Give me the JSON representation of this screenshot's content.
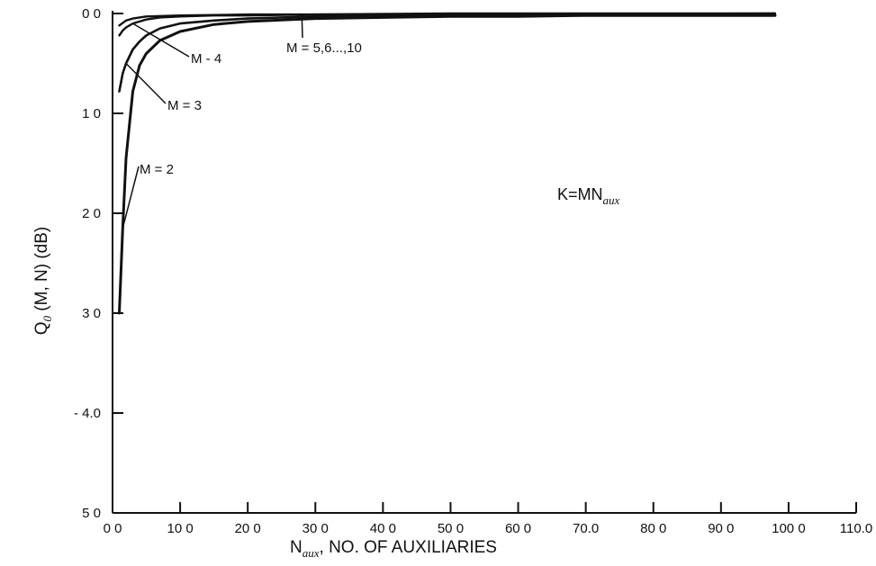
{
  "chart_data": {
    "type": "line",
    "title": "",
    "xlabel": {
      "main": "N",
      "sub": "aux",
      "rest": ",  NO. OF AUXILIARIES"
    },
    "ylabel": {
      "main": "Q",
      "sub": "0",
      "rest": " (M, N) (dB)"
    },
    "xlim": [
      0,
      110
    ],
    "ylim": [
      0,
      5
    ],
    "y_inverted": true,
    "grid": false,
    "x_ticks": [
      0,
      10,
      20,
      30,
      40,
      50,
      60,
      70,
      80,
      90,
      100,
      110
    ],
    "x_tick_labels": [
      "0 0",
      "10 0",
      "20 0",
      "30 0",
      "40 0",
      "50 0",
      "60 0",
      "70.0",
      "80 0",
      "90 0",
      "100 0",
      "110.0"
    ],
    "y_ticks": [
      0,
      1,
      2,
      3,
      4,
      5
    ],
    "y_tick_labels": [
      "0 0",
      "1 0",
      "2 0",
      "3 0",
      "- 4.0",
      "5 0"
    ],
    "formula": {
      "main": "K=MN",
      "sub": "aux"
    },
    "series": [
      {
        "label": "M = 2",
        "x": [
          1,
          1.5,
          2,
          3,
          4,
          5,
          7,
          10,
          15,
          20,
          30,
          40,
          50,
          60,
          70,
          80,
          90,
          98
        ],
        "y": [
          3.0,
          2.15,
          1.45,
          0.78,
          0.52,
          0.4,
          0.27,
          0.18,
          0.11,
          0.08,
          0.05,
          0.04,
          0.03,
          0.03,
          0.02,
          0.02,
          0.02,
          0.02
        ]
      },
      {
        "label": "M = 3",
        "x": [
          1,
          1.5,
          2,
          3,
          4,
          5,
          7,
          10,
          15,
          20,
          30,
          50,
          98
        ],
        "y": [
          0.78,
          0.6,
          0.5,
          0.36,
          0.28,
          0.22,
          0.15,
          0.1,
          0.07,
          0.05,
          0.03,
          0.02,
          0.01
        ]
      },
      {
        "label": "M = 4",
        "x": [
          1,
          1.5,
          2,
          3,
          4,
          5,
          7,
          10,
          15,
          20,
          30,
          50,
          98
        ],
        "y": [
          0.22,
          0.17,
          0.14,
          0.1,
          0.08,
          0.06,
          0.04,
          0.03,
          0.02,
          0.02,
          0.01,
          0.01,
          0.0
        ]
      },
      {
        "label": "M = 5,6...,10",
        "x": [
          1,
          2,
          3,
          5,
          10,
          20,
          30,
          50,
          98
        ],
        "y": [
          0.12,
          0.07,
          0.05,
          0.03,
          0.02,
          0.01,
          0.01,
          0.0,
          0.0
        ]
      }
    ],
    "annotations": [
      {
        "text": "M = 2",
        "series": "M = 2"
      },
      {
        "text": "M = 3",
        "series": "M = 3"
      },
      {
        "text": "M - 4",
        "series": "M = 4"
      },
      {
        "text": "M = 5,6...,10",
        "series": "M = 5,6...,10"
      }
    ]
  }
}
